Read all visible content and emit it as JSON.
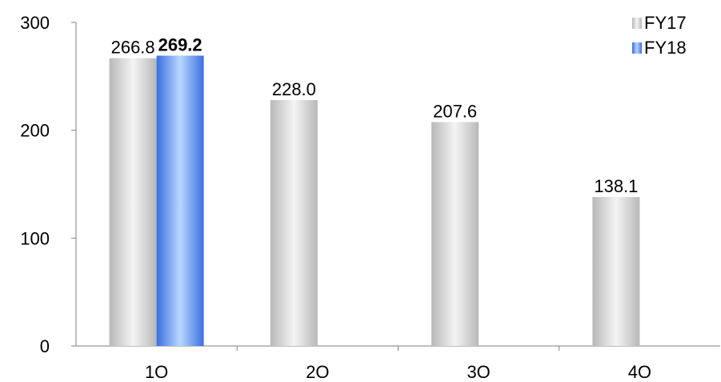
{
  "chart_data": {
    "type": "bar",
    "categories": [
      "1Q",
      "2Q",
      "3Q",
      "4Q"
    ],
    "series": [
      {
        "name": "FY17",
        "values": [
          266.8,
          228.0,
          207.6,
          138.1
        ],
        "labels": [
          "266.8",
          "228.0",
          "207.6",
          "138.1"
        ],
        "style": "gray-cylinder"
      },
      {
        "name": "FY18",
        "values": [
          269.2,
          null,
          null,
          null
        ],
        "labels": [
          "269.2",
          "",
          "",
          ""
        ],
        "style": "blue-cylinder",
        "label_bold": true
      }
    ],
    "y_ticks": [
      "0",
      "100",
      "200",
      "300"
    ],
    "ylim": [
      0,
      300
    ],
    "title": "",
    "xlabel": "",
    "ylabel": "",
    "grid": false,
    "legend_position": "top-right",
    "colors": {
      "fy17_edge": "#b8b8b8",
      "fy17_center": "#f4f4f4",
      "fy18_edge": "#3a6fe0",
      "fy18_center": "#b8d8ff",
      "axis": "#808080"
    }
  }
}
